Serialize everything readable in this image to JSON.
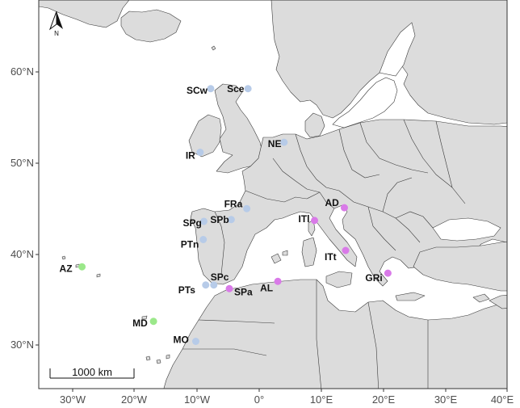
{
  "map": {
    "colors": {
      "sea": "#ffffff",
      "land": "#dcdcdc",
      "border": "#3a3a3a",
      "frame": "#333333",
      "group_atlantic_north": "#b7cbe8",
      "group_mediterranean": "#d97ae8",
      "group_macaronesia": "#9be88a"
    },
    "lat_ticks": [
      "60°N",
      "50°N",
      "40°N",
      "30°N"
    ],
    "lon_ticks": [
      "30°W",
      "20°W",
      "10°W",
      "0°",
      "10°E",
      "20°E",
      "30°E",
      "40°E"
    ],
    "scale_bar": {
      "label": "1000 km"
    },
    "north_arrow": {
      "label": "N"
    },
    "sites": [
      {
        "code": "SCw",
        "lon": -7.8,
        "lat": 58.2,
        "group": "group_atlantic_north"
      },
      {
        "code": "Sce",
        "lon": -1.8,
        "lat": 58.2,
        "group": "group_atlantic_north"
      },
      {
        "code": "NE",
        "lon": 4.0,
        "lat": 52.3,
        "group": "group_atlantic_north"
      },
      {
        "code": "IR",
        "lon": -9.5,
        "lat": 51.2,
        "group": "group_atlantic_north"
      },
      {
        "code": "FRa",
        "lon": -2.0,
        "lat": 45.0,
        "group": "group_atlantic_north"
      },
      {
        "code": "SPg",
        "lon": -8.9,
        "lat": 43.6,
        "group": "group_atlantic_north"
      },
      {
        "code": "SPb",
        "lon": -4.5,
        "lat": 43.8,
        "group": "group_atlantic_north"
      },
      {
        "code": "PTn",
        "lon": -9.0,
        "lat": 41.6,
        "group": "group_atlantic_north"
      },
      {
        "code": "SPc",
        "lon": -7.3,
        "lat": 36.6,
        "group": "group_atlantic_north"
      },
      {
        "code": "PTs",
        "lon": -8.6,
        "lat": 36.6,
        "group": "group_atlantic_north"
      },
      {
        "code": "MO",
        "lon": -10.2,
        "lat": 30.4,
        "group": "group_atlantic_north"
      },
      {
        "code": "AD",
        "lon": 13.7,
        "lat": 45.1,
        "group": "group_mediterranean"
      },
      {
        "code": "ITl",
        "lon": 8.9,
        "lat": 43.7,
        "group": "group_mediterranean"
      },
      {
        "code": "ITt",
        "lon": 13.9,
        "lat": 40.4,
        "group": "group_mediterranean"
      },
      {
        "code": "GRi",
        "lon": 20.7,
        "lat": 37.9,
        "group": "group_mediterranean"
      },
      {
        "code": "AL",
        "lon": 3.0,
        "lat": 37.0,
        "group": "group_mediterranean"
      },
      {
        "code": "SPa",
        "lon": -4.8,
        "lat": 36.2,
        "group": "group_mediterranean"
      },
      {
        "code": "AZ",
        "lon": -28.5,
        "lat": 38.6,
        "group": "group_macaronesia"
      },
      {
        "code": "MD",
        "lon": -17.0,
        "lat": 32.6,
        "group": "group_macaronesia"
      }
    ]
  }
}
